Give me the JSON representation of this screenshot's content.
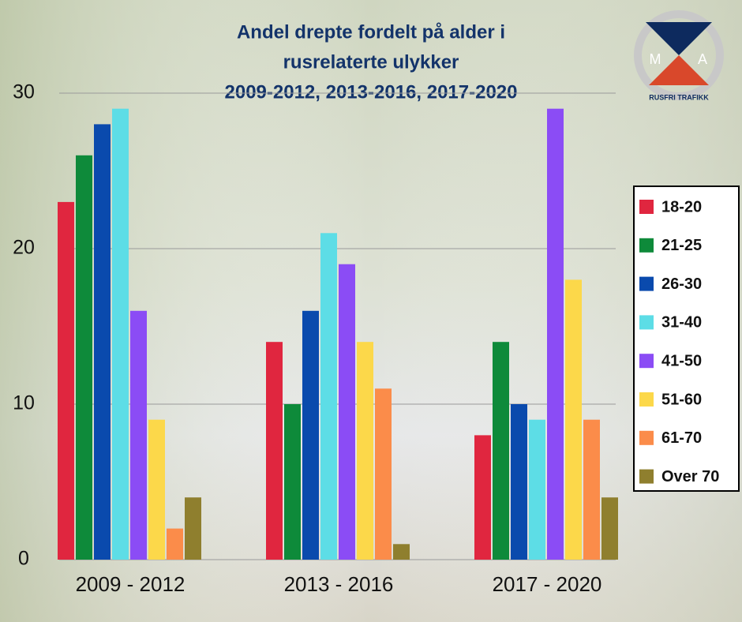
{
  "chart_data": {
    "type": "bar",
    "title_lines": [
      "Andel drepte fordelt på alder i",
      "rusrelaterte ulykker",
      "2009-2012, 2013-2016, 2017-2020"
    ],
    "categories": [
      "2009 - 2012",
      "2013 - 2016",
      "2017 - 2020"
    ],
    "series": [
      {
        "name": "18-20",
        "color": "#e0263f",
        "values": [
          23,
          14,
          8
        ]
      },
      {
        "name": "21-25",
        "color": "#0e8a3a",
        "values": [
          26,
          10,
          14
        ]
      },
      {
        "name": "26-30",
        "color": "#0a4aad",
        "values": [
          28,
          16,
          10
        ]
      },
      {
        "name": "31-40",
        "color": "#5ddde6",
        "values": [
          29,
          21,
          9
        ]
      },
      {
        "name": "41-50",
        "color": "#8b4cf5",
        "values": [
          16,
          19,
          29
        ]
      },
      {
        "name": "51-60",
        "color": "#fcd84a",
        "values": [
          9,
          14,
          18
        ]
      },
      {
        "name": "61-70",
        "color": "#fb8c4a",
        "values": [
          2,
          11,
          9
        ]
      },
      {
        "name": "Over 70",
        "color": "#8f7f2e",
        "values": [
          4,
          1,
          4
        ]
      }
    ],
    "ylim": [
      0,
      30
    ],
    "yticks": [
      0,
      10,
      20,
      30
    ],
    "grid": true,
    "legend": "right"
  },
  "logo": {
    "left": "M",
    "right": "A",
    "text": "RUSFRI TRAFIKK"
  }
}
